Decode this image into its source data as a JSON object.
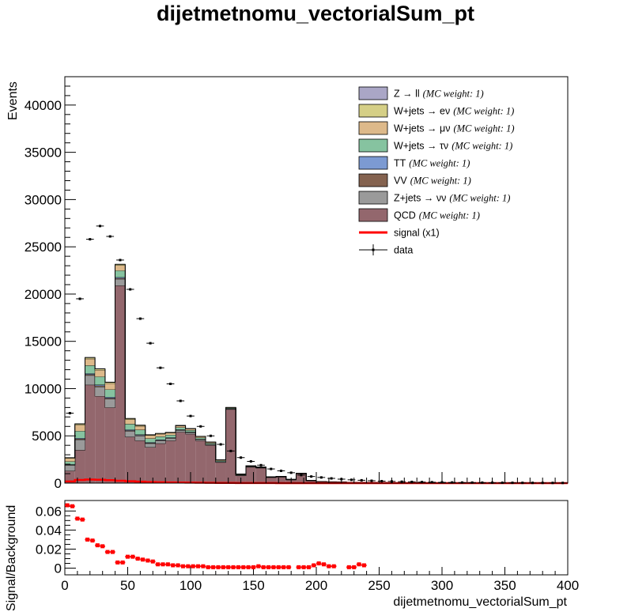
{
  "chart_data": [
    {
      "type": "bar",
      "title": "dijetmetnomu_vectorialSum_pt",
      "xlabel": "",
      "ylabel": "Events",
      "xlim": [
        0,
        400
      ],
      "ylim": [
        0,
        43000
      ],
      "bin_width": 8,
      "y_ticks": [
        "0",
        "5000",
        "10000",
        "15000",
        "20000",
        "25000",
        "30000",
        "35000",
        "40000"
      ],
      "legend_position": "top-right",
      "legend": [
        {
          "label": "Z → ll",
          "weight": "(MC weight: 1)",
          "color": "#aaa6c6",
          "kind": "box"
        },
        {
          "label": "W+jets → eν",
          "weight": "(MC weight: 1)",
          "color": "#d5cf86",
          "kind": "box"
        },
        {
          "label": "W+jets → μν",
          "weight": "(MC weight: 1)",
          "color": "#ddb98a",
          "kind": "box"
        },
        {
          "label": "W+jets → τν",
          "weight": "(MC weight: 1)",
          "color": "#86c3a0",
          "kind": "box"
        },
        {
          "label": "TT",
          "weight": "(MC weight: 1)",
          "color": "#7c9ad2",
          "kind": "box"
        },
        {
          "label": "VV",
          "weight": "(MC weight: 1)",
          "color": "#84624f",
          "kind": "box"
        },
        {
          "label": "Z+jets → νν",
          "weight": "(MC weight: 1)",
          "color": "#9a9a9a",
          "kind": "box"
        },
        {
          "label": "QCD",
          "weight": "(MC weight: 1)",
          "color": "#93676d",
          "kind": "box"
        },
        {
          "label": "signal (x1)",
          "weight": "",
          "color": "#ff0000",
          "kind": "line"
        },
        {
          "label": "data",
          "weight": "",
          "color": "#000000",
          "kind": "marker"
        }
      ],
      "series": [
        {
          "name": "QCD",
          "values": [
            1300,
            3500,
            10400,
            9200,
            8000,
            20900,
            4900,
            4500,
            3800,
            4200,
            4500,
            5400,
            5200,
            4500,
            4000,
            2200,
            7800,
            800,
            1700,
            1600,
            600,
            650,
            350,
            1000,
            250,
            150,
            120,
            100,
            80,
            60,
            50,
            50,
            40,
            40,
            30,
            30,
            25,
            25,
            20,
            20,
            20,
            20,
            15,
            15,
            15,
            15,
            15,
            10,
            10,
            10
          ]
        },
        {
          "name": "Z+jets → νν",
          "values": [
            600,
            1100,
            1000,
            1000,
            900,
            700,
            600,
            500,
            400,
            300,
            250,
            200,
            160,
            120,
            90,
            70,
            55,
            45,
            35,
            28,
            22,
            18,
            14,
            11,
            9,
            7,
            6,
            5,
            4,
            3,
            3,
            2,
            2,
            2,
            2,
            1,
            1,
            1,
            1,
            1,
            1,
            1,
            1,
            1,
            1,
            1,
            1,
            1,
            1,
            1
          ]
        },
        {
          "name": "VV",
          "values": [
            50,
            90,
            110,
            110,
            100,
            90,
            80,
            70,
            60,
            50,
            40,
            35,
            30,
            25,
            20,
            15,
            12,
            10,
            8,
            6,
            5,
            4,
            3,
            3,
            2,
            2,
            1,
            1,
            1,
            1,
            1,
            1,
            1,
            1,
            1,
            1,
            1,
            1,
            1,
            1,
            1,
            1,
            1,
            1,
            1,
            1,
            1,
            1,
            1,
            1
          ]
        },
        {
          "name": "TT",
          "values": [
            40,
            70,
            90,
            100,
            100,
            90,
            80,
            70,
            60,
            50,
            40,
            35,
            30,
            25,
            20,
            15,
            12,
            10,
            8,
            6,
            5,
            4,
            3,
            3,
            2,
            2,
            1,
            1,
            1,
            1,
            1,
            1,
            1,
            1,
            1,
            1,
            1,
            1,
            1,
            1,
            1,
            1,
            1,
            1,
            1,
            1,
            1,
            1,
            1,
            1
          ]
        },
        {
          "name": "W+jets → τν",
          "values": [
            300,
            750,
            850,
            850,
            800,
            700,
            600,
            500,
            400,
            330,
            270,
            220,
            180,
            140,
            110,
            85,
            65,
            50,
            40,
            30,
            24,
            19,
            15,
            12,
            9,
            7,
            5,
            4,
            3,
            3,
            2,
            2,
            2,
            1,
            1,
            1,
            1,
            1,
            1,
            1,
            1,
            1,
            1,
            1,
            1,
            1,
            1,
            1,
            1,
            1
          ]
        },
        {
          "name": "W+jets → μν",
          "values": [
            350,
            650,
            700,
            700,
            650,
            560,
            480,
            400,
            330,
            270,
            220,
            180,
            145,
            115,
            90,
            70,
            55,
            42,
            33,
            25,
            20,
            16,
            12,
            10,
            8,
            6,
            5,
            4,
            3,
            3,
            2,
            2,
            2,
            1,
            1,
            1,
            1,
            1,
            1,
            1,
            1,
            1,
            1,
            1,
            1,
            1,
            1,
            1,
            1,
            1
          ]
        },
        {
          "name": "W+jets → eν",
          "values": [
            50,
            100,
            120,
            120,
            110,
            100,
            90,
            75,
            60,
            50,
            40,
            32,
            26,
            20,
            16,
            12,
            10,
            8,
            6,
            5,
            4,
            3,
            3,
            2,
            2,
            1,
            1,
            1,
            1,
            1,
            1,
            1,
            1,
            1,
            1,
            1,
            1,
            1,
            1,
            1,
            1,
            1,
            1,
            1,
            1,
            1,
            1,
            1,
            1,
            1
          ]
        },
        {
          "name": "Z → ll",
          "values": [
            10,
            20,
            30,
            30,
            30,
            25,
            22,
            18,
            15,
            12,
            10,
            8,
            6,
            5,
            4,
            3,
            3,
            2,
            2,
            1,
            1,
            1,
            1,
            1,
            1,
            1,
            1,
            1,
            1,
            1,
            1,
            1,
            1,
            1,
            1,
            1,
            1,
            1,
            1,
            1,
            1,
            1,
            1,
            1,
            1,
            1,
            1,
            1,
            1,
            1
          ]
        }
      ],
      "signal": {
        "name": "signal (x1)",
        "values": [
          180,
          330,
          380,
          360,
          310,
          250,
          200,
          160,
          120,
          95,
          75,
          60,
          48,
          38,
          30,
          24,
          18,
          14,
          11,
          9,
          7,
          5,
          4,
          3,
          2,
          2,
          1,
          1,
          1,
          1,
          1,
          1,
          1,
          1,
          1,
          1,
          1,
          1,
          1,
          1,
          1,
          1,
          1,
          1,
          1,
          1,
          1,
          1,
          1,
          1
        ]
      },
      "data": {
        "name": "data",
        "values": [
          7400,
          19500,
          25800,
          27200,
          26100,
          23600,
          20500,
          17400,
          14800,
          12200,
          10500,
          8700,
          7100,
          6000,
          5000,
          4100,
          3400,
          2700,
          2300,
          1900,
          1500,
          1300,
          1100,
          850,
          700,
          600,
          500,
          420,
          350,
          300,
          250,
          210,
          180,
          150,
          130,
          110,
          95,
          80,
          70,
          60,
          55,
          50,
          45,
          40,
          35,
          30,
          28,
          25,
          22,
          20
        ]
      }
    },
    {
      "type": "scatter",
      "title": "",
      "xlabel": "dijetmetnomu_vectorialSum_pt",
      "ylabel": "Signal/Background",
      "xlim": [
        0,
        400
      ],
      "ylim": [
        -0.007,
        0.071
      ],
      "x_ticks": [
        "0",
        "50",
        "100",
        "150",
        "200",
        "250",
        "300",
        "350",
        "400"
      ],
      "y_ticks": [
        "0",
        "0.02",
        "0.04",
        "0.06"
      ],
      "bin_width": 4,
      "points": [
        {
          "x": 2,
          "y": 0.066
        },
        {
          "x": 6,
          "y": 0.065
        },
        {
          "x": 10,
          "y": 0.052
        },
        {
          "x": 14,
          "y": 0.051
        },
        {
          "x": 18,
          "y": 0.03
        },
        {
          "x": 22,
          "y": 0.029
        },
        {
          "x": 26,
          "y": 0.024
        },
        {
          "x": 30,
          "y": 0.023
        },
        {
          "x": 34,
          "y": 0.017
        },
        {
          "x": 38,
          "y": 0.017
        },
        {
          "x": 42,
          "y": 0.006
        },
        {
          "x": 46,
          "y": 0.006
        },
        {
          "x": 50,
          "y": 0.012
        },
        {
          "x": 54,
          "y": 0.012
        },
        {
          "x": 58,
          "y": 0.01
        },
        {
          "x": 62,
          "y": 0.009
        },
        {
          "x": 66,
          "y": 0.008
        },
        {
          "x": 70,
          "y": 0.007
        },
        {
          "x": 74,
          "y": 0.004
        },
        {
          "x": 78,
          "y": 0.004
        },
        {
          "x": 82,
          "y": 0.004
        },
        {
          "x": 86,
          "y": 0.003
        },
        {
          "x": 90,
          "y": 0.003
        },
        {
          "x": 94,
          "y": 0.002
        },
        {
          "x": 98,
          "y": 0.002
        },
        {
          "x": 102,
          "y": 0.002
        },
        {
          "x": 106,
          "y": 0.002
        },
        {
          "x": 110,
          "y": 0.002
        },
        {
          "x": 114,
          "y": 0.001
        },
        {
          "x": 118,
          "y": 0.001
        },
        {
          "x": 122,
          "y": 0.001
        },
        {
          "x": 126,
          "y": 0.001
        },
        {
          "x": 130,
          "y": 0.001
        },
        {
          "x": 134,
          "y": 0.001
        },
        {
          "x": 138,
          "y": 0.001
        },
        {
          "x": 142,
          "y": 0.001
        },
        {
          "x": 146,
          "y": 0.001
        },
        {
          "x": 150,
          "y": 0.001
        },
        {
          "x": 154,
          "y": 0.002
        },
        {
          "x": 158,
          "y": 0.001
        },
        {
          "x": 162,
          "y": 0.001
        },
        {
          "x": 166,
          "y": 0.001
        },
        {
          "x": 170,
          "y": 0.001
        },
        {
          "x": 174,
          "y": 0.001
        },
        {
          "x": 178,
          "y": 0.001
        },
        {
          "x": 186,
          "y": 0.001
        },
        {
          "x": 190,
          "y": 0.001
        },
        {
          "x": 194,
          "y": 0.001
        },
        {
          "x": 198,
          "y": 0.003
        },
        {
          "x": 202,
          "y": 0.005
        },
        {
          "x": 206,
          "y": 0.004
        },
        {
          "x": 210,
          "y": 0.002
        },
        {
          "x": 214,
          "y": 0.002
        },
        {
          "x": 226,
          "y": 0.001
        },
        {
          "x": 230,
          "y": 0.001
        },
        {
          "x": 234,
          "y": 0.004
        },
        {
          "x": 238,
          "y": 0.003
        }
      ]
    }
  ]
}
